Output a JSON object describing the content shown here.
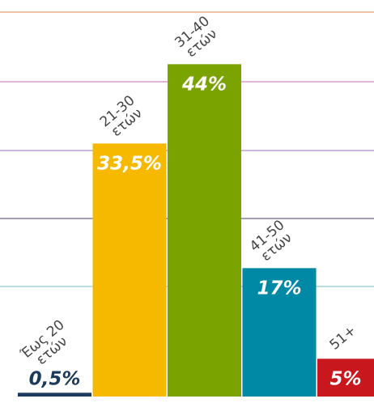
{
  "chart_data": {
    "type": "bar",
    "categories": [
      [
        "Έως 20",
        "ετών"
      ],
      [
        "21-30",
        "ετών"
      ],
      [
        "31-40",
        "ετών"
      ],
      [
        "41-50",
        "ετών"
      ],
      [
        "51+"
      ]
    ],
    "values": [
      0.5,
      33.5,
      44,
      17,
      5
    ],
    "value_labels": [
      "0,5%",
      "33,5%",
      "44%",
      "17%",
      "5%"
    ],
    "colors": [
      "#1b3a5c",
      "#f6b900",
      "#7ba300",
      "#0089a4",
      "#c9171e"
    ],
    "ylim": [
      0,
      52.5
    ]
  }
}
